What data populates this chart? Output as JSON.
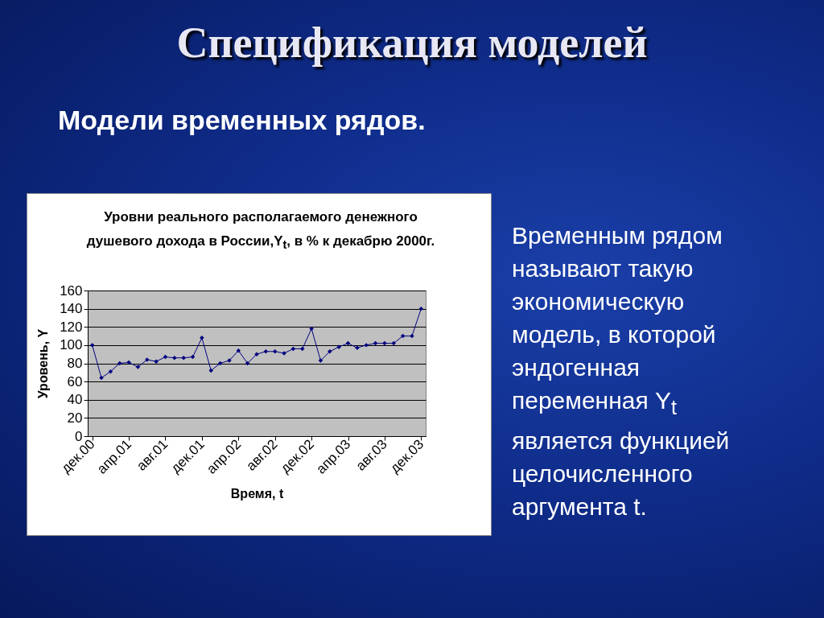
{
  "chart_data": {
    "type": "line",
    "title": "Уровни реального  располагаемого денежного душевого дохода в России,Y$_{t}$,  в % к декабрю 2000г.",
    "xlabel": "Время, t",
    "ylabel": "Уровень, Y",
    "categories": [
      "дек.00",
      null,
      null,
      null,
      "апр.01",
      null,
      null,
      null,
      "авг.01",
      null,
      null,
      null,
      "дек.01",
      null,
      null,
      null,
      "апр.02",
      null,
      null,
      null,
      "авг.02",
      null,
      null,
      null,
      "дек.02",
      null,
      null,
      null,
      "апр.03",
      null,
      null,
      null,
      "авг.03",
      null,
      null,
      null,
      "дек.03"
    ],
    "series": [
      {
        "color": "#000080",
        "values": [
          100,
          64,
          71,
          80,
          81,
          76,
          84,
          82,
          87,
          86,
          86,
          87,
          108,
          72,
          80,
          83,
          94,
          80,
          90,
          93,
          93,
          91,
          96,
          96,
          118,
          83,
          93,
          98,
          102,
          97,
          100,
          102,
          102,
          102,
          110,
          110,
          140
        ]
      }
    ],
    "ylim": [
      0,
      160
    ],
    "yticks": [
      0,
      20,
      40,
      60,
      80,
      100,
      120,
      140,
      160
    ],
    "grid": "y",
    "marker": "diamond",
    "annotations": [
      "Спецификация моделей",
      "Модели временных рядов.",
      "Временным рядом называют такую экономическую модель, в которой эндогенная переменная Y$_{t}$ является функцией целочисленного аргумента t."
    ]
  }
}
